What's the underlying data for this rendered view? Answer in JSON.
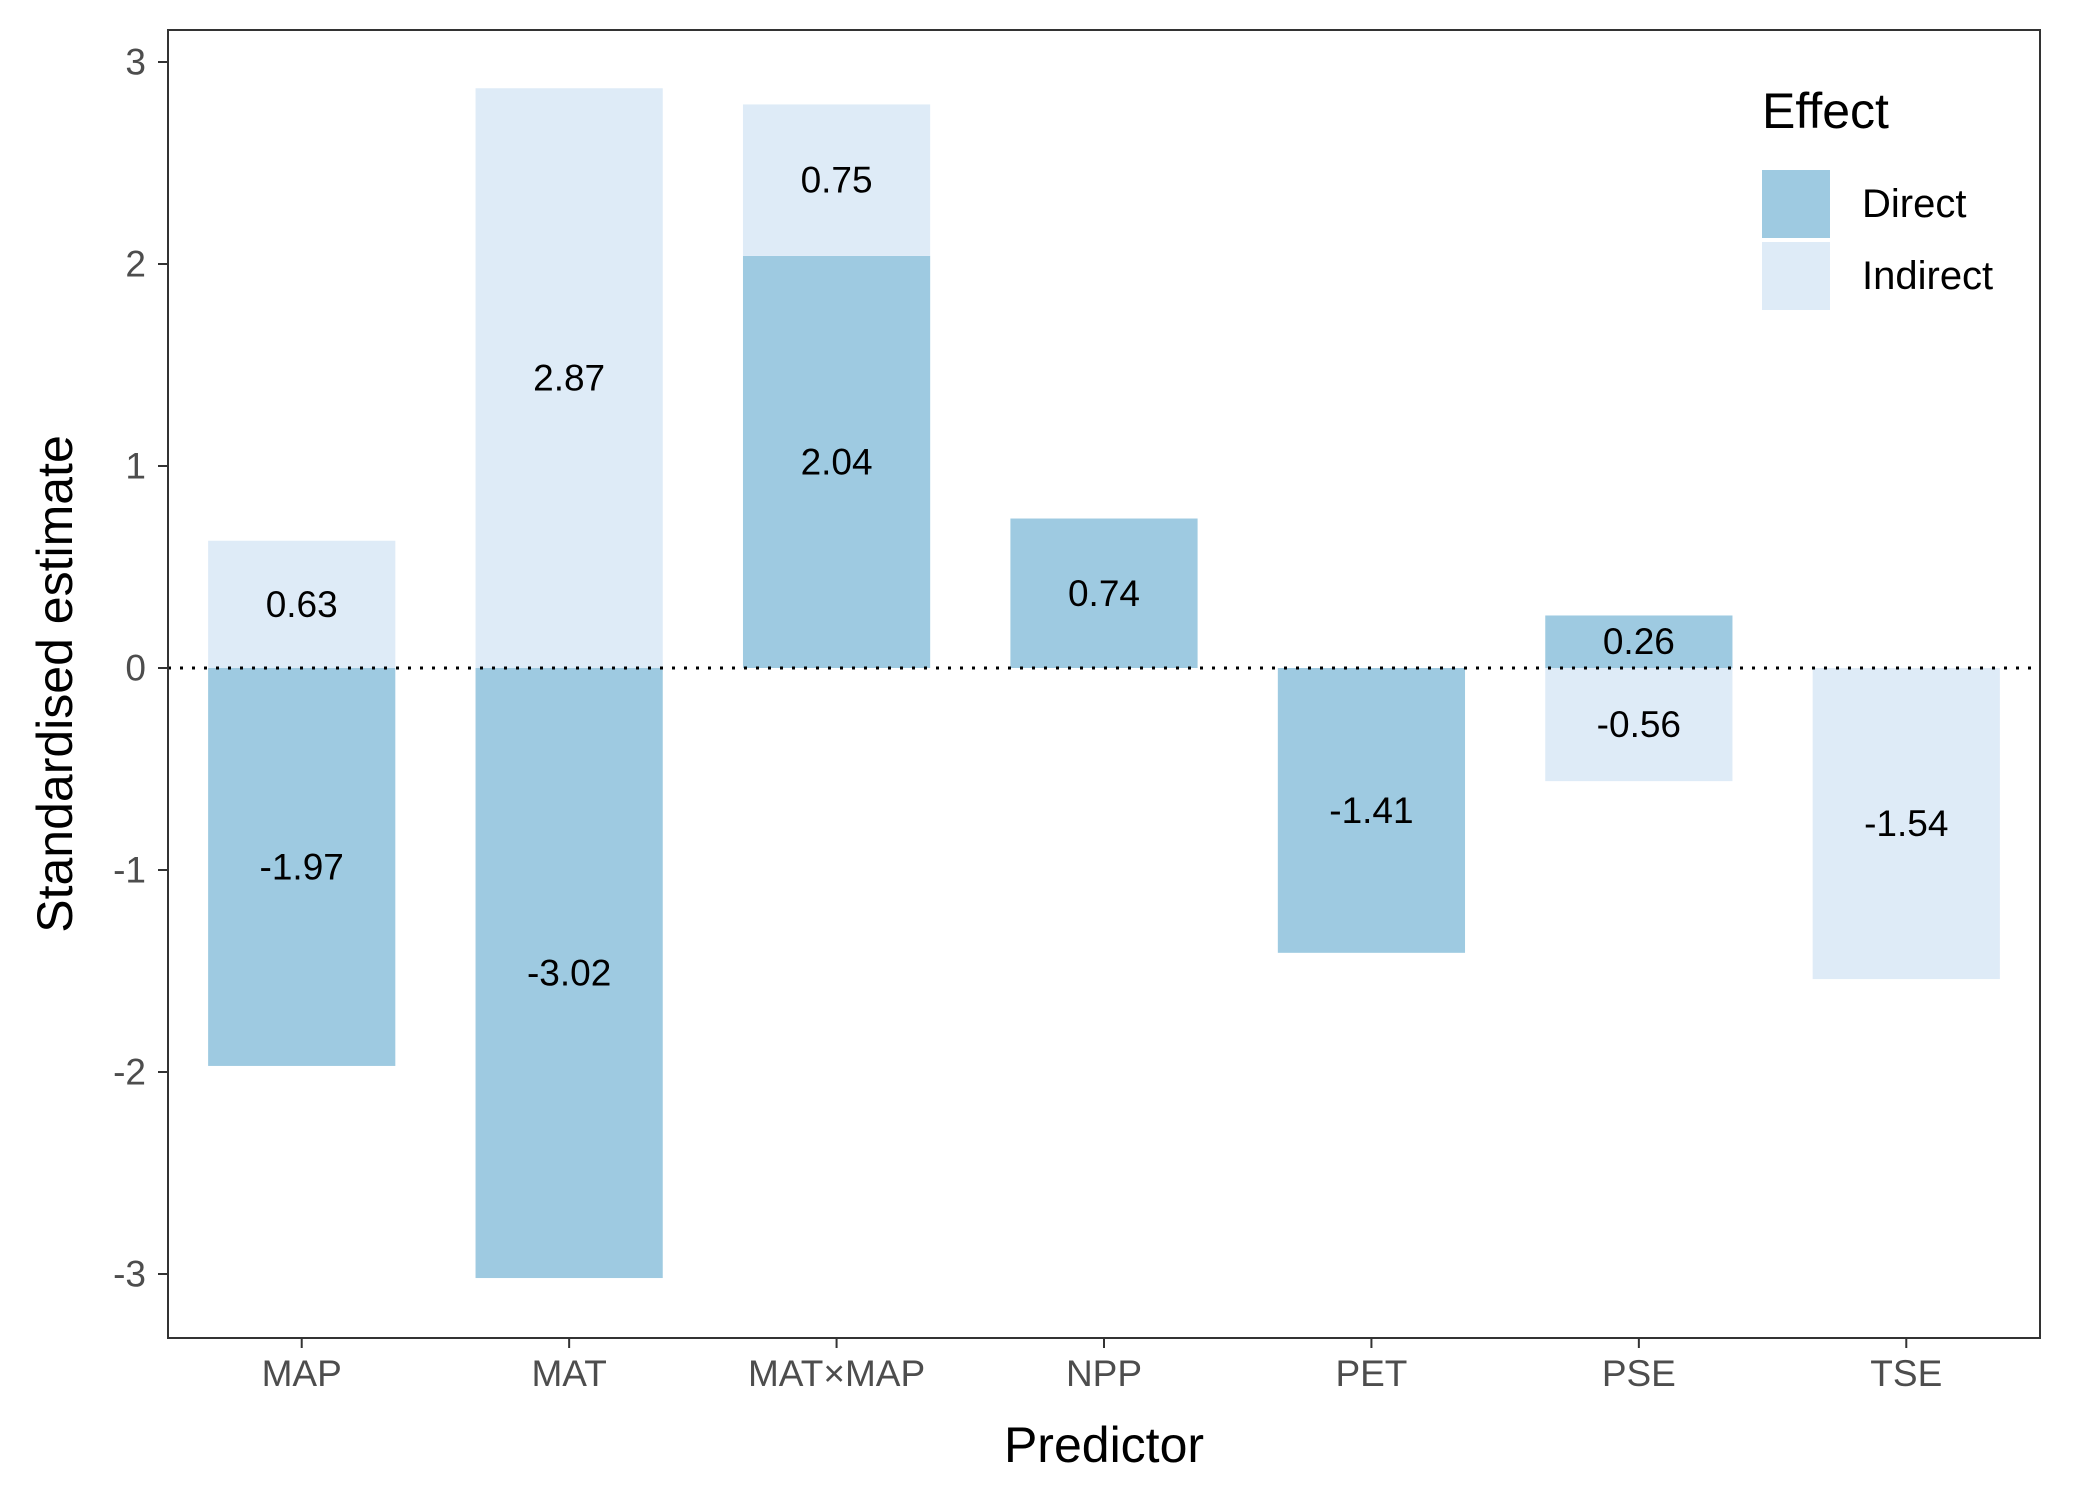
{
  "chart_data": {
    "type": "bar",
    "stacked": true,
    "categories": [
      "MAP",
      "MAT",
      "MAT×MAP",
      "NPP",
      "PET",
      "PSE",
      "TSE"
    ],
    "series": [
      {
        "name": "Direct",
        "color": "#9ecae1",
        "values": [
          -1.97,
          -3.02,
          2.04,
          0.74,
          -1.41,
          0.26,
          null
        ]
      },
      {
        "name": "Indirect",
        "color": "#deebf7",
        "values": [
          0.63,
          2.87,
          0.75,
          null,
          null,
          -0.56,
          -1.54
        ]
      }
    ],
    "bar_labels": [
      {
        "category": "MAP",
        "series": "Indirect",
        "text": "0.63"
      },
      {
        "category": "MAP",
        "series": "Direct",
        "text": "-1.97"
      },
      {
        "category": "MAT",
        "series": "Indirect",
        "text": "2.87"
      },
      {
        "category": "MAT",
        "series": "Direct",
        "text": "-3.02"
      },
      {
        "category": "MAT×MAP",
        "series": "Direct",
        "text": "2.04"
      },
      {
        "category": "MAT×MAP",
        "series": "Indirect",
        "text": "0.75"
      },
      {
        "category": "NPP",
        "series": "Direct",
        "text": "0.74"
      },
      {
        "category": "PET",
        "series": "Direct",
        "text": "-1.41"
      },
      {
        "category": "PSE",
        "series": "Direct",
        "text": "0.26"
      },
      {
        "category": "PSE",
        "series": "Indirect",
        "text": "-0.56"
      },
      {
        "category": "TSE",
        "series": "Indirect",
        "text": "-1.54"
      }
    ],
    "xlabel": "Predictor",
    "ylabel": "Standardised estimate",
    "ylim": [
      -3.3,
      3.15
    ],
    "yticks": [
      3,
      2,
      1,
      0,
      -1,
      -2,
      -3
    ],
    "ytick_labels": [
      "3",
      "2",
      "1",
      "0",
      "-1",
      "-2",
      "-3"
    ],
    "reference_line": {
      "y": 0,
      "style": "dotted"
    },
    "grid": false,
    "legend": {
      "title": "Effect",
      "placement": "top-right",
      "entries": [
        "Direct",
        "Indirect"
      ]
    }
  }
}
